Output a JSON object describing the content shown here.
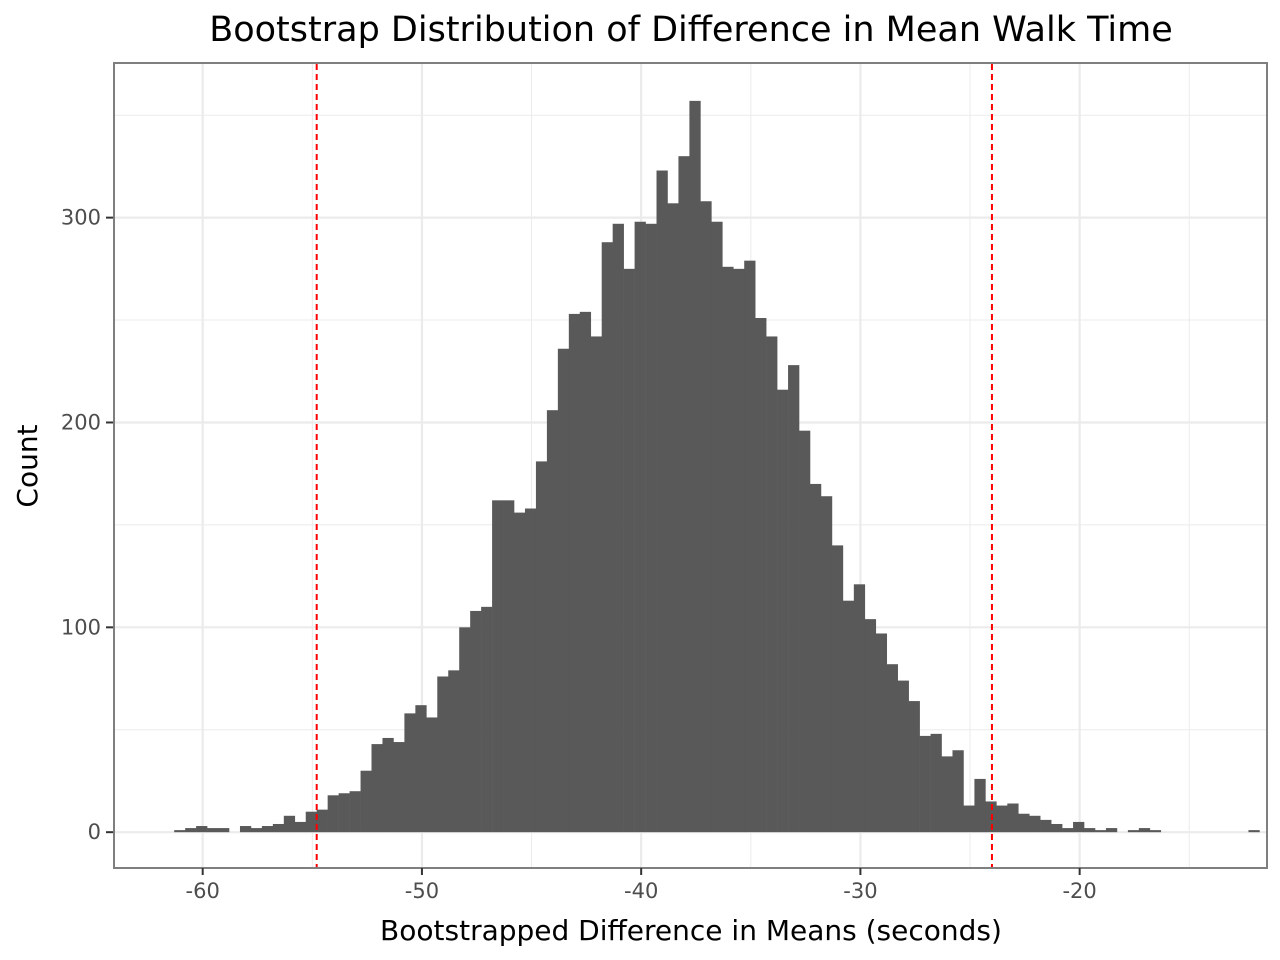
{
  "chart_data": {
    "type": "bar",
    "title": "Bootstrap Distribution of Difference in Mean Walk Time",
    "xlabel": "Bootstrapped Difference in Means (seconds)",
    "ylabel": "Count",
    "xlim": [
      -64,
      -11.5
    ],
    "ylim": [
      -17,
      375
    ],
    "x_ticks": [
      -60,
      -50,
      -40,
      -30,
      -20
    ],
    "x_tick_labels": [
      "-60",
      "-50",
      "-40",
      "-30",
      "-20"
    ],
    "y_ticks": [
      0,
      100,
      200,
      300
    ],
    "y_tick_labels": [
      "0",
      "100",
      "200",
      "300"
    ],
    "grid": true,
    "bin_start": -61.3,
    "bin_width": 0.5,
    "counts": [
      1,
      2,
      3,
      2,
      2,
      0,
      3,
      2,
      3,
      4,
      8,
      5,
      10,
      11,
      18,
      19,
      20,
      30,
      43,
      46,
      44,
      58,
      62,
      56,
      76,
      79,
      100,
      108,
      110,
      162,
      162,
      156,
      158,
      181,
      206,
      236,
      253,
      254,
      242,
      288,
      297,
      275,
      298,
      297,
      323,
      307,
      330,
      357,
      308,
      298,
      276,
      275,
      279,
      251,
      242,
      216,
      228,
      196,
      170,
      164,
      140,
      113,
      121,
      104,
      97,
      82,
      74,
      64,
      47,
      48,
      37,
      40,
      13,
      26,
      15,
      13,
      14,
      9,
      8,
      6,
      4,
      2,
      5,
      2,
      1,
      2,
      0,
      1,
      2,
      1,
      0,
      0,
      0,
      0,
      0,
      0,
      0,
      0,
      1
    ],
    "reference_lines": [
      {
        "x": -54.8,
        "color": "#ff0000",
        "style": "dashed"
      },
      {
        "x": -24.0,
        "color": "#ff0000",
        "style": "dashed"
      }
    ],
    "bar_color": "#595959",
    "grid_color": "#ebebeb",
    "panel_border_color": "#7f7f7f"
  }
}
